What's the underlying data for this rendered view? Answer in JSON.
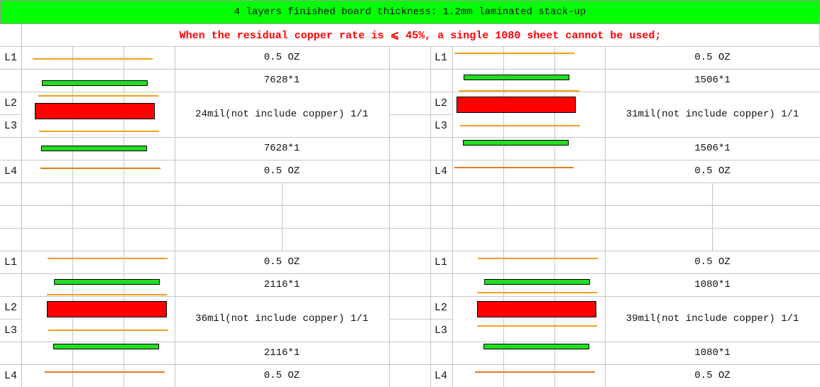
{
  "title": "4 layers finished board thickness: 1.2mm laminated stack-up",
  "note": "When the residual copper rate is ⩽ 45%, a single 1080 sheet cannot be used;",
  "colors": {
    "header_bg": "#00ff00",
    "note_text": "#ff0000",
    "copper": "#f0a020",
    "prepreg": "#22dd22",
    "core": "#ff0000"
  },
  "layer_labels": [
    "L1",
    "L2",
    "L3",
    "L4"
  ],
  "stackups": [
    {
      "copper_top": "0.5 OZ",
      "prepreg_top": "7628*1",
      "core": "24mil(not include copper) 1/1",
      "prepreg_bottom": "7628*1",
      "copper_bottom": "0.5 OZ"
    },
    {
      "copper_top": "0.5 OZ",
      "prepreg_top": "1506*1",
      "core": "31mil(not include copper) 1/1",
      "prepreg_bottom": "1506*1",
      "copper_bottom": "0.5 OZ"
    },
    {
      "copper_top": "0.5 OZ",
      "prepreg_top": "2116*1",
      "core": "36mil(not include copper) 1/1",
      "prepreg_bottom": "2116*1",
      "copper_bottom": "0.5 OZ"
    },
    {
      "copper_top": "0.5 OZ",
      "prepreg_top": "1080*1",
      "core": "39mil(not include copper) 1/1",
      "prepreg_bottom": "1080*1",
      "copper_bottom": "0.5 OZ"
    }
  ]
}
